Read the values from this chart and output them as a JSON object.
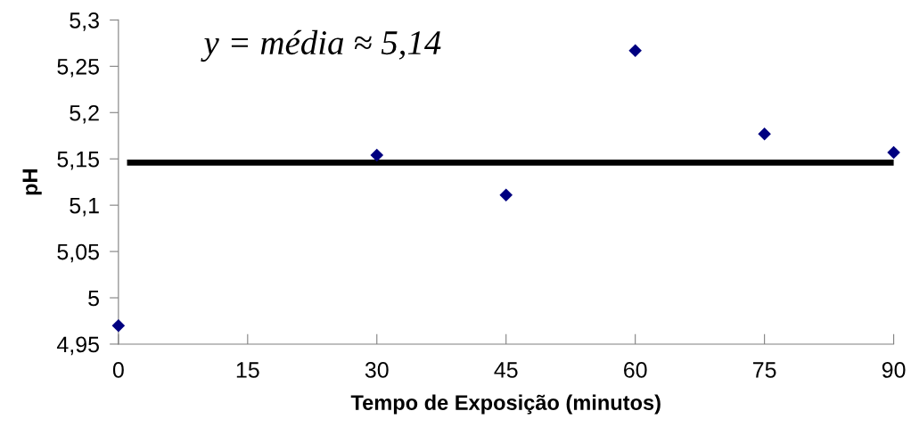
{
  "chart_data": {
    "type": "scatter",
    "xlabel": "Tempo de Exposição (minutos)",
    "ylabel": "pH",
    "x": [
      0,
      30,
      45,
      60,
      75,
      90
    ],
    "series": [
      {
        "color": "#000080",
        "marker": "diamond",
        "values": [
          4.97,
          5.154,
          5.111,
          5.267,
          5.177,
          5.157
        ]
      },
      {
        "type": "line",
        "color": "#000000",
        "marker": "none",
        "x": [
          1,
          90
        ],
        "values": [
          5.146,
          5.146
        ]
      }
    ],
    "annotations": [
      "y = média ≈ 5,14"
    ],
    "xlim": [
      0,
      90
    ],
    "xticks": [
      0,
      15,
      30,
      45,
      60,
      75,
      90
    ],
    "ylim": [
      4.95,
      5.3
    ],
    "yticks": [
      {
        "value": 4.95,
        "label": "4,95"
      },
      {
        "value": 5,
        "label": "5"
      },
      {
        "value": 5.05,
        "label": "5,05"
      },
      {
        "value": 5.1,
        "label": "5,1"
      },
      {
        "value": 5.15,
        "label": "5,15"
      },
      {
        "value": 5.2,
        "label": "5,2"
      },
      {
        "value": 5.25,
        "label": "5,25"
      },
      {
        "value": 5.3,
        "label": "5,3"
      }
    ],
    "grid": false,
    "legend": false
  }
}
